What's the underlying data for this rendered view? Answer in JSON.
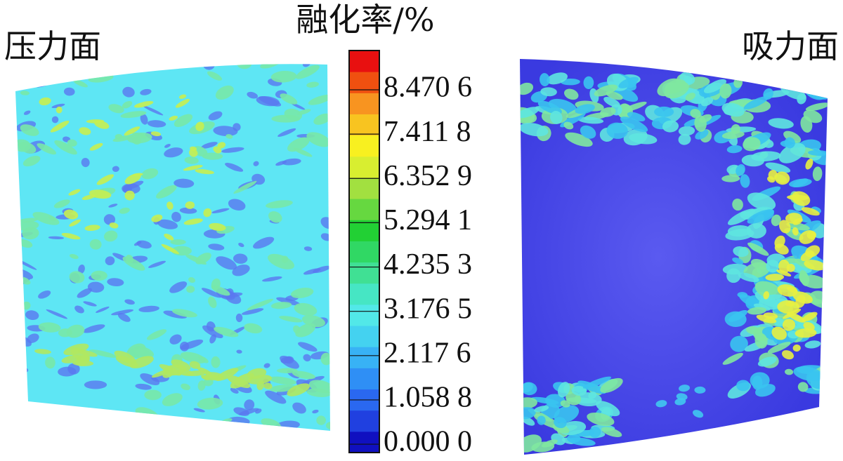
{
  "labels": {
    "left": "压力面",
    "right": "吸力面"
  },
  "colorbar": {
    "title": "融化率/%",
    "range": [
      -0.2,
      9.41
    ],
    "ticks": [
      {
        "value": 0,
        "label": "0.000 0"
      },
      {
        "value": 1.0588,
        "label": "1.058 8"
      },
      {
        "value": 2.1176,
        "label": "2.117 6"
      },
      {
        "value": 3.1765,
        "label": "3.176 5"
      },
      {
        "value": 4.2353,
        "label": "4.235 3"
      },
      {
        "value": 5.2941,
        "label": "5.294 1"
      },
      {
        "value": 6.3529,
        "label": "6.352 9"
      },
      {
        "value": 7.4118,
        "label": "7.411 8"
      },
      {
        "value": 8.4706,
        "label": "8.470 6"
      }
    ],
    "colors": [
      "#1010c0",
      "#2040e0",
      "#2a68f0",
      "#2f8ff5",
      "#38b2f5",
      "#44d2f0",
      "#52e8e8",
      "#46e6c4",
      "#40e094",
      "#30d864",
      "#22d034",
      "#66d840",
      "#a2e040",
      "#d8ee30",
      "#f8f020",
      "#f8c420",
      "#f89420",
      "#f05010",
      "#e81010"
    ]
  }
}
